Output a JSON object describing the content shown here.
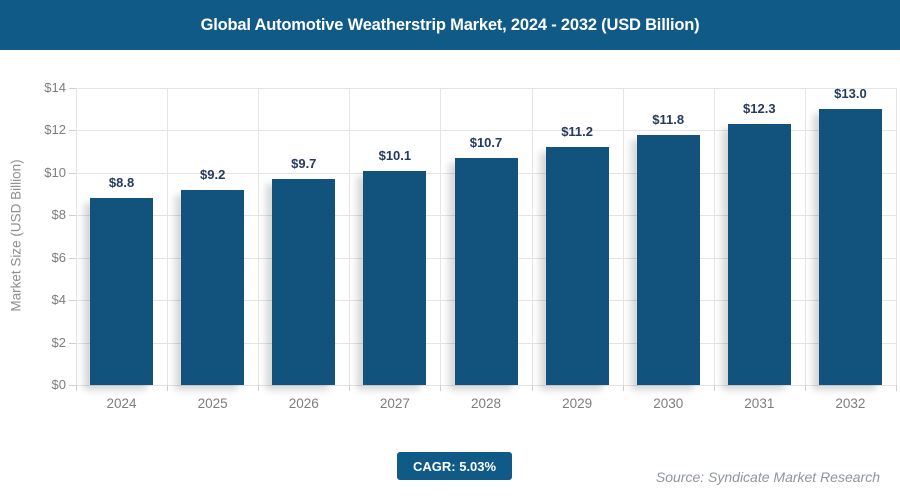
{
  "header": {
    "title": "Global Automotive Weatherstrip Market, 2024 - 2032 (USD Billion)"
  },
  "chart_data": {
    "type": "bar",
    "title": "Global Automotive Weatherstrip Market, 2024 - 2032 (USD Billion)",
    "categories": [
      "2024",
      "2025",
      "2026",
      "2027",
      "2028",
      "2029",
      "2030",
      "2031",
      "2032"
    ],
    "values": [
      8.8,
      9.2,
      9.7,
      10.1,
      10.7,
      11.2,
      11.8,
      12.3,
      13.0
    ],
    "value_labels": [
      "$8.8",
      "$9.2",
      "$9.7",
      "$10.1",
      "$10.7",
      "$11.2",
      "$11.8",
      "$12.3",
      "$13.0"
    ],
    "xlabel": "",
    "ylabel": "Market Size (USD Billion)",
    "ylim": [
      0,
      14
    ],
    "ytick_step": 2,
    "ytick_labels": [
      "$0",
      "$2",
      "$4",
      "$6",
      "$8",
      "$10",
      "$12",
      "$14"
    ],
    "grid": true,
    "legend": "none",
    "bar_color": "#12537e"
  },
  "footer": {
    "cagr_badge": "CAGR: 5.03%",
    "source": "Source: Syndicate Market Research"
  },
  "colors": {
    "header_bg": "#0f5a87",
    "bar": "#12537e",
    "value_label_text": "#243a5e",
    "axis_text": "#7d7d7d",
    "gridline": "#e4e4e4",
    "badge_bg": "#0f5a87",
    "source_text": "#8e969c"
  }
}
